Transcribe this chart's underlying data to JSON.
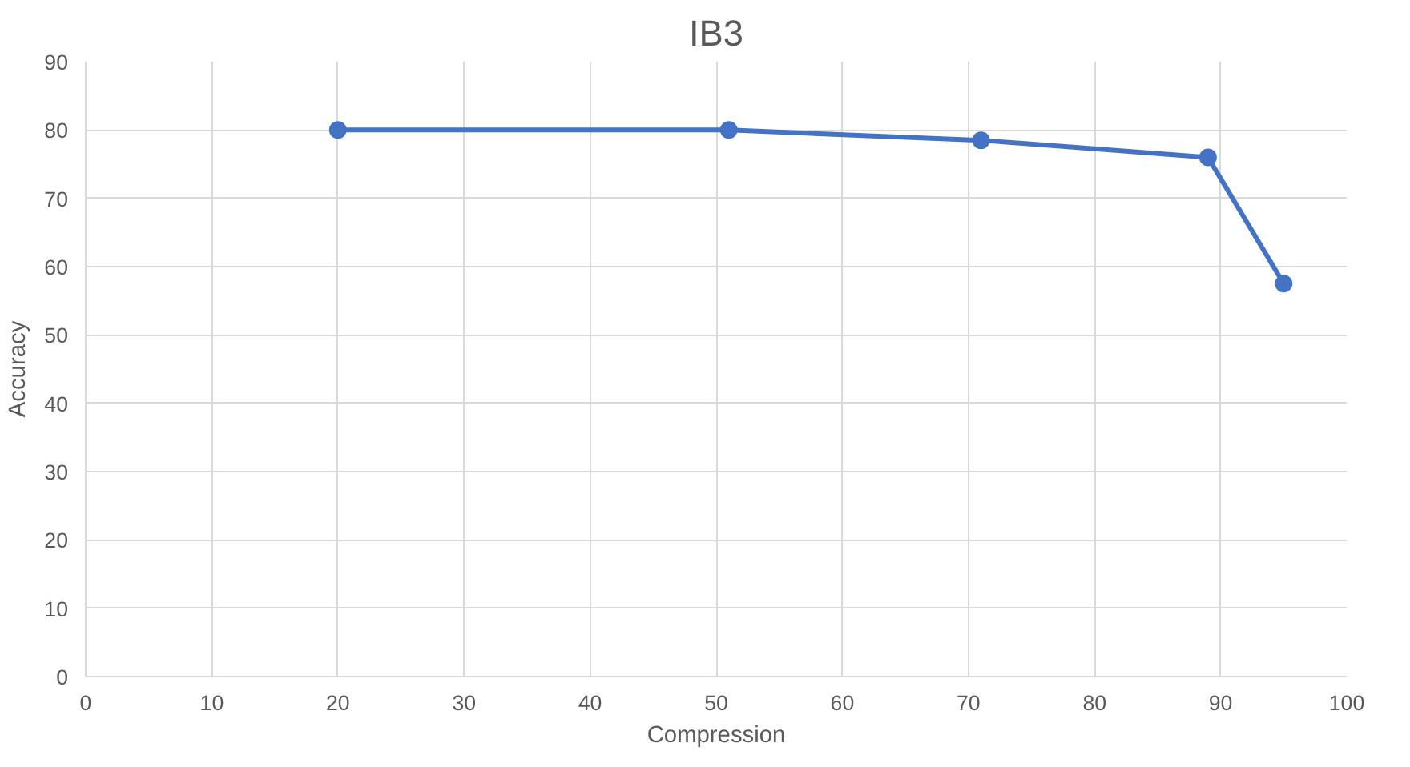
{
  "chart_data": {
    "type": "line",
    "title": "IB3",
    "xlabel": "Compression",
    "ylabel": "Accuracy",
    "x": [
      20,
      51,
      71,
      89,
      95
    ],
    "series": [
      {
        "color": "#4472c4",
        "values": [
          80,
          80,
          78.5,
          76,
          57.5
        ]
      }
    ],
    "xlim": [
      0,
      100
    ],
    "xticks": [
      0,
      10,
      20,
      30,
      40,
      50,
      60,
      70,
      80,
      90,
      100
    ],
    "ylim": [
      0,
      90
    ],
    "yticks": [
      0,
      10,
      20,
      30,
      40,
      50,
      60,
      70,
      80,
      90
    ],
    "grid": true,
    "marker": "circle",
    "line_style": "solid"
  }
}
